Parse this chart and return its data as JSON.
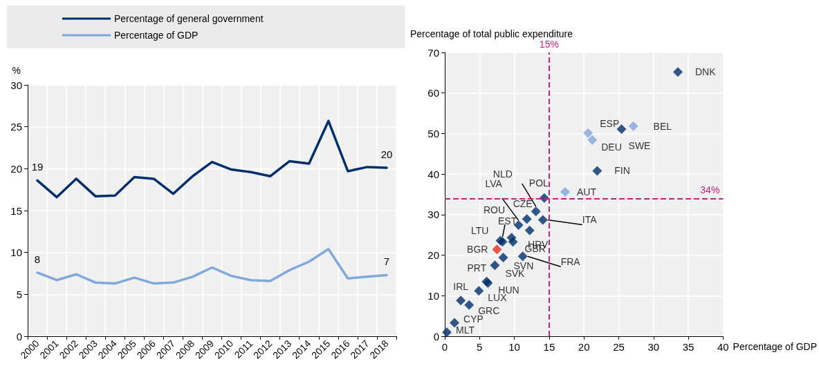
{
  "chart_data": [
    {
      "type": "line",
      "ylabel": "%",
      "categories": [
        "2000",
        "2001",
        "2002",
        "2003",
        "2004",
        "2005",
        "2006",
        "2007",
        "2008",
        "2009",
        "2010",
        "2011",
        "2012",
        "2013",
        "2014",
        "2015",
        "2016",
        "2017",
        "2018"
      ],
      "series": [
        {
          "name": "Percentage of general government",
          "color": "#002f6c",
          "values": [
            18.6,
            16.6,
            18.8,
            16.7,
            16.8,
            19.0,
            18.8,
            17.0,
            19.1,
            20.8,
            19.9,
            19.6,
            19.1,
            20.9,
            20.6,
            25.7,
            19.7,
            20.2,
            20.1
          ],
          "value_labels": [
            "19",
            null,
            null,
            null,
            null,
            null,
            null,
            null,
            null,
            null,
            null,
            null,
            null,
            null,
            null,
            null,
            null,
            null,
            "20"
          ]
        },
        {
          "name": "Percentage of GDP",
          "color": "#7fa8dc",
          "values": [
            7.6,
            6.7,
            7.4,
            6.4,
            6.3,
            7.0,
            6.3,
            6.4,
            7.1,
            8.2,
            7.2,
            6.7,
            6.6,
            7.9,
            8.9,
            10.4,
            6.9,
            7.1,
            7.3
          ],
          "value_labels": [
            "8",
            null,
            null,
            null,
            null,
            null,
            null,
            null,
            null,
            null,
            null,
            null,
            null,
            null,
            null,
            null,
            null,
            null,
            "7"
          ]
        }
      ],
      "ylim": [
        0,
        30
      ],
      "yticks": [
        0,
        5,
        10,
        15,
        20,
        25,
        30
      ],
      "grid": true,
      "legend": "top",
      "marker": "none",
      "line_style": "solid"
    },
    {
      "type": "scatter",
      "xlabel": "Percentage of GDP",
      "ylabel": "Percentage of total public expenditure",
      "series": [
        {
          "x": [
            0.3,
            1.4,
            2.3,
            3.5,
            4.9,
            6.0,
            6.2,
            7.2,
            7.5,
            8.4,
            8.0,
            8.3,
            9.6,
            9.8,
            10.6,
            11.8,
            12.2,
            13.1,
            14.1,
            14.3,
            11.2,
            17.3,
            20.6,
            21.2,
            25.4,
            27.1,
            21.9,
            33.5
          ],
          "values": [
            1.0,
            3.3,
            8.8,
            7.7,
            11.2,
            13.5,
            13.1,
            17.5,
            21.4,
            19.4,
            23.6,
            23.3,
            24.3,
            23.3,
            27.4,
            28.9,
            26.1,
            30.8,
            28.7,
            34.1,
            19.7,
            35.6,
            50.1,
            48.4,
            51.1,
            51.8,
            40.8,
            65.2
          ],
          "value_labels": [
            "MLT",
            "CYP",
            "IRL",
            "GRC",
            "LUX",
            "PRT",
            "HUN",
            "SVK",
            "BGR",
            "SVN",
            "LTU",
            "ROU",
            "EST",
            "GBR",
            "LVA",
            "CZE",
            "HRV",
            "NLD",
            "ITA",
            "POL",
            "FRA",
            "AUT",
            "ESP",
            "DEU",
            "SWE",
            "BEL",
            "FIN",
            "DNK"
          ],
          "colors": [
            "#002f6c",
            "#002f6c",
            "#002f6c",
            "#002f6c",
            "#002f6c",
            "#002f6c",
            "#002f6c",
            "#002f6c",
            "#e0301e",
            "#002f6c",
            "#002f6c",
            "#002f6c",
            "#002f6c",
            "#002f6c",
            "#002f6c",
            "#002f6c",
            "#002f6c",
            "#002f6c",
            "#002f6c",
            "#002f6c",
            "#002f6c",
            "#7fa8dc",
            "#7fa8dc",
            "#7fa8dc",
            "#002f6c",
            "#7fa8dc",
            "#002f6c",
            "#002f6c"
          ]
        }
      ],
      "xlim": [
        0,
        40
      ],
      "xticks": [
        0,
        5,
        10,
        15,
        20,
        25,
        30,
        35,
        40
      ],
      "ylim": [
        0,
        70
      ],
      "yticks": [
        0,
        10,
        20,
        30,
        40,
        50,
        60,
        70
      ],
      "grid": true,
      "marker": "diamond",
      "ref_lines": [
        {
          "axis": "x",
          "value": 15,
          "label": "15%",
          "color": "#c8217e",
          "line_style": "dashed"
        },
        {
          "axis": "y",
          "value": 34,
          "label": "34%",
          "color": "#c8217e",
          "line_style": "dashed"
        }
      ]
    }
  ]
}
